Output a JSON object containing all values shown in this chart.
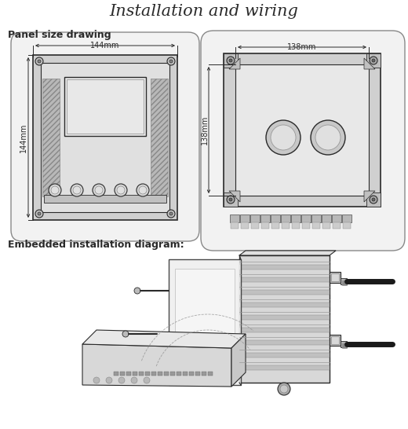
{
  "title": "Installation and wiring",
  "title_fontsize": 15,
  "section1_label": "Panel size drawing",
  "section2_label": "Embedded installation diagram:",
  "dim_label_top": "144mm",
  "dim_label_side": "144mm",
  "dim_label_top2": "138mm",
  "dim_label_side2": "138mm",
  "bg_color": "#ffffff",
  "lc": "#2a2a2a",
  "fill_outer": "#f2f2f2",
  "fill_inner": "#e8e8e8",
  "fill_hatch": "#c8c8c8",
  "fill_lcd": "#e4e4e4",
  "fill_btn": "#bbbbbb",
  "fill_screw": "#aaaaaa",
  "fill_hole": "#d8d8d8",
  "fill_term": "#b8b8b8"
}
